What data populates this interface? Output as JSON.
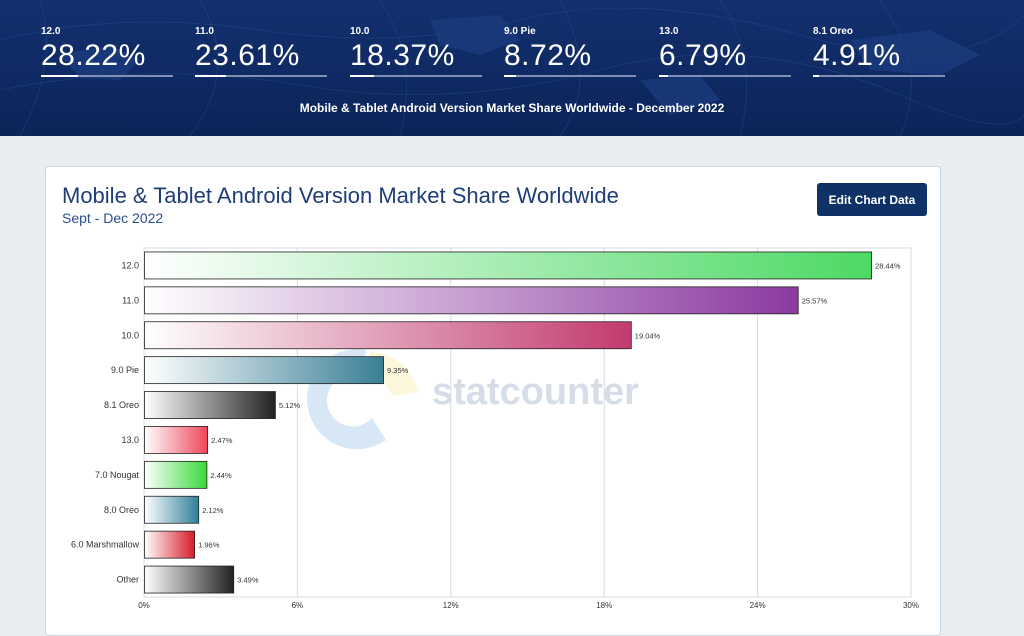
{
  "banner": {
    "stats": [
      {
        "label": "12.0",
        "value": "28.22%",
        "share": 28.22
      },
      {
        "label": "11.0",
        "value": "23.61%",
        "share": 23.61
      },
      {
        "label": "10.0",
        "value": "18.37%",
        "share": 18.37
      },
      {
        "label": "9.0 Pie",
        "value": "8.72%",
        "share": 8.72
      },
      {
        "label": "13.0",
        "value": "6.79%",
        "share": 6.79
      },
      {
        "label": "8.1 Oreo",
        "value": "4.91%",
        "share": 4.91
      }
    ],
    "subtitle": "Mobile & Tablet Android Version Market Share Worldwide - December 2022"
  },
  "card": {
    "title": "Mobile & Tablet Android Version Market Share Worldwide",
    "subtitle": "Sept - Dec 2022",
    "edit_button": "Edit Chart Data"
  },
  "watermark": "statcounter",
  "chart_data": {
    "type": "bar",
    "orientation": "horizontal",
    "title": "Mobile & Tablet Android Version Market Share Worldwide",
    "subtitle": "Sept - Dec 2022",
    "categories": [
      "12.0",
      "11.0",
      "10.0",
      "9.0 Pie",
      "8.1 Oreo",
      "13.0",
      "7.0 Nougat",
      "8.0 Oreo",
      "6.0 Marshmallow",
      "Other"
    ],
    "values": [
      28.44,
      25.57,
      19.04,
      9.35,
      5.12,
      2.47,
      2.44,
      2.12,
      1.96,
      3.49
    ],
    "value_labels": [
      "28.44%",
      "25.57%",
      "19.04%",
      "9.35%",
      "5.12%",
      "2.47%",
      "2.44%",
      "2.12%",
      "1.96%",
      "3.49%"
    ],
    "colors": [
      "#4cd964",
      "#8b3aa0",
      "#c23a6e",
      "#3a7f96",
      "#222222",
      "#f0455a",
      "#39d939",
      "#2f7f98",
      "#d81b2b",
      "#222222"
    ],
    "xlim": [
      0,
      30
    ],
    "xticks": [
      "0%",
      "6%",
      "12%",
      "18%",
      "24%",
      "30%"
    ],
    "grid": true
  }
}
